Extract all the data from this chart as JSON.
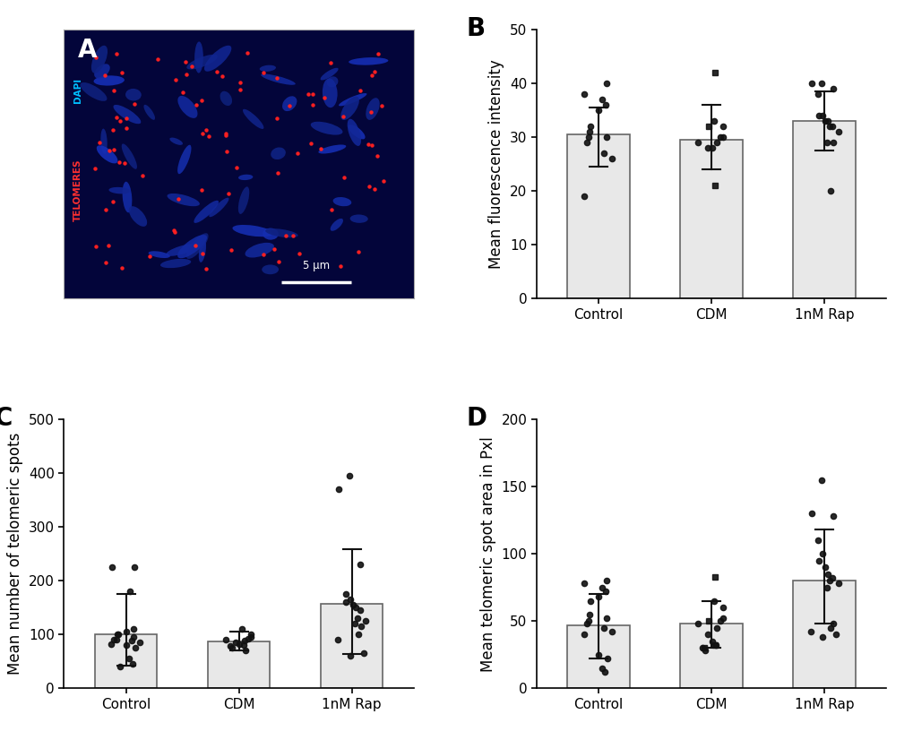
{
  "panel_label_fontsize": 20,
  "panel_label_fontweight": "bold",
  "B": {
    "ylabel": "Mean fluorescence intensity",
    "ylim": [
      0,
      50
    ],
    "yticks": [
      0,
      10,
      20,
      30,
      40,
      50
    ],
    "categories": [
      "Control",
      "CDM",
      "1nM Rap"
    ],
    "bar_means": [
      30.5,
      29.5,
      33.0
    ],
    "bar_color": "#e8e8e8",
    "bar_edgecolor": "#666666",
    "bar_width": 0.55,
    "control_dots": [
      40,
      38,
      37,
      36,
      35,
      32,
      31,
      30,
      30,
      29,
      27,
      26,
      19
    ],
    "cdm_dots_circles": [
      33,
      32,
      30,
      30,
      29,
      29,
      28,
      28
    ],
    "cdm_dots_squares": [
      42,
      32,
      21
    ],
    "rap_dots": [
      40,
      40,
      39,
      38,
      34,
      34,
      33,
      33,
      32,
      32,
      31,
      29,
      29,
      20
    ],
    "control_error_low": 24.5,
    "control_error_high": 35.5,
    "cdm_error_low": 24.0,
    "cdm_error_high": 36.0,
    "rap_error_low": 27.5,
    "rap_error_high": 38.5
  },
  "C": {
    "ylabel": "Mean number of telomeric spots",
    "ylim": [
      0,
      500
    ],
    "yticks": [
      0,
      100,
      200,
      300,
      400,
      500
    ],
    "categories": [
      "Control",
      "CDM",
      "1nM Rap"
    ],
    "bar_means": [
      100,
      87,
      157
    ],
    "bar_color": "#e8e8e8",
    "bar_edgecolor": "#666666",
    "bar_width": 0.55,
    "control_dots": [
      225,
      225,
      180,
      110,
      105,
      100,
      100,
      95,
      90,
      90,
      88,
      85,
      82,
      80,
      75,
      55,
      45,
      40
    ],
    "cdm_dots": [
      110,
      100,
      95,
      92,
      90,
      88,
      85,
      82,
      80,
      78,
      75,
      70
    ],
    "rap_dots": [
      395,
      370,
      230,
      175,
      165,
      160,
      155,
      150,
      145,
      130,
      125,
      120,
      115,
      100,
      90,
      65,
      60
    ],
    "control_error_low": 42,
    "control_error_high": 175,
    "cdm_error_low": 70,
    "cdm_error_high": 105,
    "rap_error_low": 63,
    "rap_error_high": 258
  },
  "D": {
    "ylabel": "Mean telomeric spot area in Pxl",
    "ylim": [
      0,
      200
    ],
    "yticks": [
      0,
      50,
      100,
      150,
      200
    ],
    "categories": [
      "Control",
      "CDM",
      "1nM Rap"
    ],
    "bar_means": [
      47,
      48,
      80
    ],
    "bar_color": "#e8e8e8",
    "bar_edgecolor": "#666666",
    "bar_width": 0.55,
    "control_dots": [
      80,
      78,
      75,
      72,
      68,
      65,
      55,
      52,
      50,
      48,
      45,
      42,
      40,
      25,
      22,
      15,
      12
    ],
    "cdm_dots_circles": [
      65,
      60,
      52,
      50,
      48,
      45,
      40,
      35,
      32,
      30,
      28
    ],
    "cdm_dots_squares": [
      83,
      50,
      32,
      30
    ],
    "rap_dots": [
      155,
      130,
      128,
      110,
      100,
      95,
      90,
      85,
      82,
      80,
      78,
      75,
      48,
      45,
      42,
      40,
      38
    ],
    "control_error_low": 22,
    "control_error_high": 70,
    "cdm_error_low": 30,
    "cdm_error_high": 65,
    "rap_error_low": 48,
    "rap_error_high": 118
  },
  "dot_color": "#111111",
  "dot_alpha": 0.9,
  "errorbar_color": "#111111",
  "errorbar_lw": 1.5,
  "tick_fontsize": 11,
  "label_fontsize": 12,
  "img_bg_color": "#03053a",
  "img_chrom_color": "#1a3ab5",
  "img_telo_color": "#ff2020",
  "dapi_label_color": "#00bfff",
  "telo_label_color": "#ff3030",
  "scale_bar_text": "5 μm"
}
